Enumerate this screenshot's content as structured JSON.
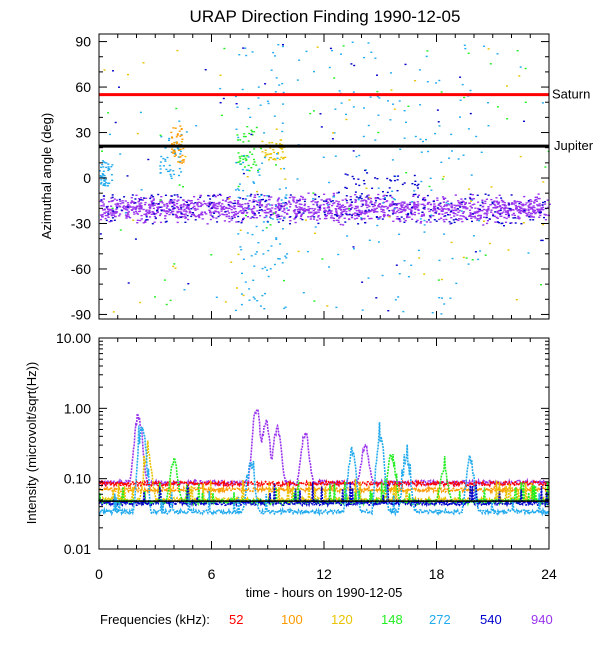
{
  "chart_data": [
    {
      "type": "scatter",
      "title": "URAP Direction Finding  1990-12-05",
      "ylabel": "Azimuthal angle (deg)",
      "xlabel": "",
      "xlim": [
        0,
        24
      ],
      "ylim": [
        -93,
        95
      ],
      "yticks": [
        "90",
        "60",
        "30",
        "0",
        "-30",
        "-60",
        "-90"
      ],
      "ytick_values": [
        90,
        60,
        30,
        0,
        -30,
        -60,
        -90
      ],
      "reference_lines": [
        {
          "label": "Saturn",
          "value": 55,
          "color": "#ff0000"
        },
        {
          "label": "Jupiter",
          "value": 21,
          "color": "#000000"
        }
      ],
      "band_center_deg": -20,
      "band_halfwidth_deg": 9,
      "series": [
        {
          "name": "52",
          "color": "#ff0000"
        },
        {
          "name": "100",
          "color": "#ff9900"
        },
        {
          "name": "120",
          "color": "#e8c400"
        },
        {
          "name": "148",
          "color": "#22ee22"
        },
        {
          "name": "272",
          "color": "#22aaee"
        },
        {
          "name": "540",
          "color": "#0000cc"
        },
        {
          "name": "940",
          "color": "#9933ee"
        }
      ],
      "clusters": [
        {
          "x": [
            0.0,
            0.7
          ],
          "y": [
            -5,
            12
          ],
          "series": "272"
        },
        {
          "x": [
            3.2,
            4.4
          ],
          "y": [
            0,
            30
          ],
          "series": "272"
        },
        {
          "x": [
            3.8,
            4.5
          ],
          "y": [
            10,
            35
          ],
          "series": "100"
        },
        {
          "x": [
            7.3,
            8.6
          ],
          "y": [
            5,
            35
          ],
          "series": "148"
        },
        {
          "x": [
            8.5,
            9.9
          ],
          "y": [
            12,
            26
          ],
          "series": "120"
        },
        {
          "x": [
            7.2,
            10.0
          ],
          "y": [
            -90,
            90
          ],
          "series": "272"
        },
        {
          "x": [
            10.5,
            20.5
          ],
          "y": [
            -90,
            90
          ],
          "series": "272"
        },
        {
          "x": [
            13.0,
            17.0
          ],
          "y": [
            -15,
            5
          ],
          "series": "540"
        }
      ]
    },
    {
      "type": "line",
      "title": "",
      "ylabel": "Intensity (microvolt/sqrt(Hz))",
      "xlabel": "time - hours on 1990-12-05",
      "xlim": [
        0,
        24
      ],
      "xticks": [
        "0",
        "6",
        "12",
        "18",
        "24"
      ],
      "xtick_values": [
        0,
        6,
        12,
        18,
        24
      ],
      "ylim": [
        0.01,
        10
      ],
      "yscale": "log",
      "yticks": [
        "10.00",
        "1.00",
        "0.10",
        "0.01"
      ],
      "ytick_values": [
        10,
        1,
        0.1,
        0.01
      ],
      "series": [
        {
          "name": "940",
          "color": "#9933ee",
          "baseline": 0.088
        },
        {
          "name": "52",
          "color": "#ff0000",
          "baseline": 0.085
        },
        {
          "name": "100",
          "color": "#ff9900",
          "baseline": 0.07
        },
        {
          "name": "120",
          "color": "#e8c400",
          "baseline": 0.05
        },
        {
          "name": "148",
          "color": "#22ee22",
          "baseline": 0.047
        },
        {
          "name": "540",
          "color": "#0000cc",
          "baseline": 0.045
        },
        {
          "name": "272",
          "color": "#22aaee",
          "baseline": 0.034
        }
      ],
      "reference_line": {
        "value": 0.048,
        "color": "#000000"
      },
      "peaks": [
        {
          "x": 2.1,
          "y": 0.9,
          "series": "940"
        },
        {
          "x": 2.3,
          "y": 0.6,
          "series": "272"
        },
        {
          "x": 2.6,
          "y": 0.25,
          "series": "120"
        },
        {
          "x": 4.0,
          "y": 0.2,
          "series": "148"
        },
        {
          "x": 8.1,
          "y": 0.18,
          "series": "272"
        },
        {
          "x": 8.4,
          "y": 1.1,
          "series": "940"
        },
        {
          "x": 8.9,
          "y": 0.75,
          "series": "940"
        },
        {
          "x": 9.5,
          "y": 0.6,
          "series": "940"
        },
        {
          "x": 11.0,
          "y": 0.5,
          "series": "940"
        },
        {
          "x": 13.5,
          "y": 0.3,
          "series": "272"
        },
        {
          "x": 14.2,
          "y": 0.32,
          "series": "940"
        },
        {
          "x": 15.0,
          "y": 0.45,
          "series": "272"
        },
        {
          "x": 15.6,
          "y": 0.25,
          "series": "148"
        },
        {
          "x": 16.4,
          "y": 0.22,
          "series": "272"
        },
        {
          "x": 18.4,
          "y": 0.15,
          "series": "148"
        },
        {
          "x": 19.8,
          "y": 0.22,
          "series": "272"
        }
      ]
    }
  ],
  "legend": {
    "label": "Frequencies (kHz):",
    "items": [
      {
        "text": "52",
        "color": "#ff0000"
      },
      {
        "text": "100",
        "color": "#ff9900"
      },
      {
        "text": "120",
        "color": "#e8c400"
      },
      {
        "text": "148",
        "color": "#22ee22"
      },
      {
        "text": "272",
        "color": "#22aaee"
      },
      {
        "text": "540",
        "color": "#0000cc"
      },
      {
        "text": "940",
        "color": "#9933ee"
      }
    ]
  }
}
